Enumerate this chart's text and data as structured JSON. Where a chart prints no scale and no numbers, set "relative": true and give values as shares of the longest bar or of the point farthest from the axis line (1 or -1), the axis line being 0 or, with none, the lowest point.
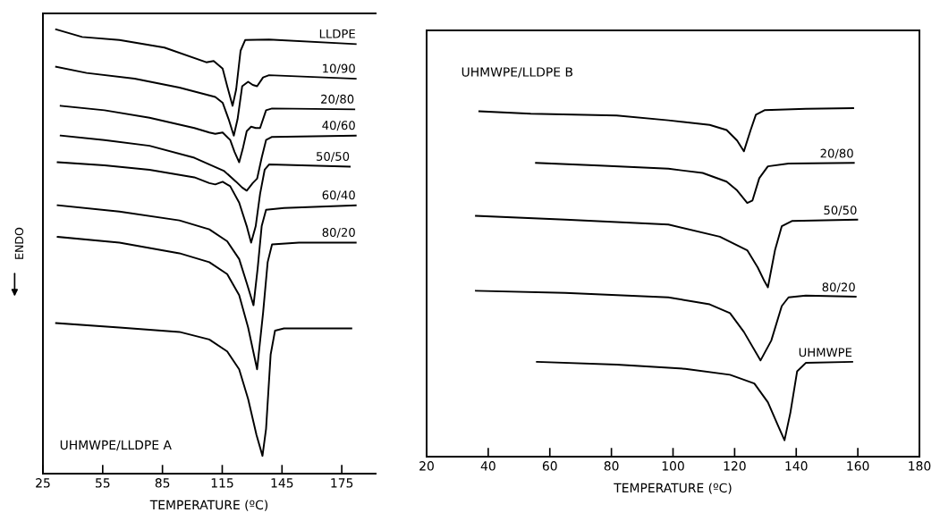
{
  "chart_data": [
    {
      "type": "line",
      "title": "UHMWPE/LLDPE A",
      "xlabel": "TEMPERATURE (ºC)",
      "ylabel": "ENDO",
      "relative": true,
      "tick_labels": "x",
      "xlim": [
        25,
        192
      ],
      "xticks": [
        25,
        55,
        85,
        115,
        145,
        175
      ],
      "series": [
        {
          "name": "LLDPE",
          "color": "#000000",
          "x": [
            31.6,
            44.7,
            63.4,
            86,
            107,
            110.7,
            115.2,
            117.5,
            120.2,
            122,
            124.2,
            126.5,
            138.5,
            182
          ],
          "values": [
            1.0,
            0.983,
            0.976,
            0.959,
            0.926,
            0.929,
            0.912,
            0.872,
            0.828,
            0.865,
            0.952,
            0.976,
            0.977,
            0.967
          ]
        },
        {
          "name": "10/90",
          "color": "#000000",
          "x": [
            31.6,
            46.9,
            71,
            93.5,
            111.5,
            115.2,
            118.2,
            120.8,
            122.7,
            125,
            128,
            130.3,
            132.5,
            135.5,
            138.5,
            182
          ],
          "values": [
            0.916,
            0.902,
            0.889,
            0.869,
            0.848,
            0.835,
            0.798,
            0.761,
            0.798,
            0.872,
            0.882,
            0.875,
            0.872,
            0.892,
            0.897,
            0.889
          ]
        },
        {
          "name": "20/80",
          "color": "#000000",
          "x": [
            33.9,
            55.9,
            78.5,
            101,
            108.5,
            111.5,
            115.2,
            119,
            121.2,
            123.5,
            125.3,
            127.3,
            129.5,
            131.8,
            134,
            137,
            140,
            181.3
          ],
          "values": [
            0.828,
            0.818,
            0.801,
            0.778,
            0.768,
            0.765,
            0.768,
            0.751,
            0.724,
            0.701,
            0.731,
            0.771,
            0.781,
            0.778,
            0.778,
            0.818,
            0.822,
            0.82
          ]
        },
        {
          "name": "40/60",
          "color": "#000000",
          "x": [
            33.9,
            55.9,
            78.5,
            101,
            116,
            122,
            125,
            127.3,
            130.3,
            132.5,
            134.8,
            137,
            140,
            182
          ],
          "values": [
            0.761,
            0.751,
            0.738,
            0.711,
            0.681,
            0.657,
            0.644,
            0.637,
            0.654,
            0.664,
            0.711,
            0.751,
            0.758,
            0.761
          ]
        },
        {
          "name": "50/50",
          "color": "#000000",
          "x": [
            32.4,
            55.9,
            78.5,
            101,
            108.5,
            111.5,
            115.2,
            119,
            123.5,
            127.3,
            129.5,
            131.8,
            134,
            136.3,
            138.5,
            179
          ],
          "values": [
            0.701,
            0.694,
            0.684,
            0.667,
            0.654,
            0.651,
            0.657,
            0.647,
            0.61,
            0.557,
            0.52,
            0.557,
            0.63,
            0.684,
            0.696,
            0.691
          ]
        },
        {
          "name": "60/40",
          "color": "#000000",
          "x": [
            32.4,
            63.4,
            93.5,
            108.5,
            117.5,
            123.5,
            127.3,
            130.7,
            132.8,
            134.8,
            137,
            146,
            182
          ],
          "values": [
            0.604,
            0.59,
            0.57,
            0.55,
            0.523,
            0.483,
            0.429,
            0.379,
            0.463,
            0.557,
            0.594,
            0.598,
            0.604
          ]
        },
        {
          "name": "80/20",
          "color": "#000000",
          "x": [
            32.4,
            63.4,
            93.5,
            108.5,
            117.5,
            123.5,
            128,
            132.5,
            135.5,
            137.8,
            140,
            153.5,
            182
          ],
          "values": [
            0.533,
            0.52,
            0.496,
            0.476,
            0.449,
            0.402,
            0.329,
            0.235,
            0.362,
            0.476,
            0.516,
            0.52,
            0.52
          ]
        },
        {
          "color": "#000000",
          "x": [
            31.6,
            63.4,
            93.5,
            108.5,
            117.5,
            123.5,
            128,
            132.2,
            135.2,
            137,
            139.3,
            141.5,
            146,
            179.8
          ],
          "values": [
            0.339,
            0.329,
            0.319,
            0.302,
            0.275,
            0.235,
            0.168,
            0.087,
            0.04,
            0.101,
            0.268,
            0.322,
            0.327,
            0.327
          ]
        }
      ]
    },
    {
      "type": "line",
      "title": "UHMWPE/LLDPE B",
      "xlabel": "TEMPERATURE (ºC)",
      "relative": true,
      "tick_labels": "x",
      "xlim": [
        20,
        180
      ],
      "xticks": [
        20,
        40,
        60,
        80,
        100,
        120,
        140,
        160,
        180
      ],
      "series": [
        {
          "color": "#000000",
          "x": [
            37.1,
            53.8,
            81.7,
            98.5,
            111.9,
            117.4,
            120.8,
            123,
            125.2,
            126.9,
            129.7,
            143.1,
            158.5
          ],
          "values": [
            0.991,
            0.984,
            0.979,
            0.965,
            0.952,
            0.937,
            0.907,
            0.876,
            0.937,
            0.981,
            0.994,
            0.998,
            1.0
          ]
        },
        {
          "name": "20/80",
          "color": "#000000",
          "x": [
            55.5,
            76.1,
            98.5,
            109.6,
            117.4,
            120.8,
            124.1,
            125.8,
            128,
            130.8,
            137.5,
            158.7
          ],
          "values": [
            0.843,
            0.835,
            0.826,
            0.814,
            0.789,
            0.764,
            0.728,
            0.735,
            0.799,
            0.833,
            0.841,
            0.843
          ]
        },
        {
          "name": "50/50",
          "color": "#000000",
          "x": [
            36,
            65,
            98.5,
            115.2,
            124.1,
            127.5,
            129.7,
            130.8,
            133.1,
            135.3,
            138.6,
            159.8
          ],
          "values": [
            0.691,
            0.68,
            0.666,
            0.631,
            0.592,
            0.543,
            0.503,
            0.486,
            0.592,
            0.661,
            0.676,
            0.68
          ]
        },
        {
          "name": "80/20",
          "color": "#000000",
          "x": [
            36,
            65,
            98.5,
            111.9,
            118.5,
            123,
            128.4,
            131.9,
            135.3,
            137.5,
            143.1,
            159.3
          ],
          "values": [
            0.476,
            0.47,
            0.457,
            0.437,
            0.412,
            0.358,
            0.276,
            0.333,
            0.432,
            0.457,
            0.462,
            0.459
          ]
        },
        {
          "name": "UHMWPE",
          "color": "#000000",
          "x": [
            55.8,
            81.7,
            104,
            118.5,
            126.4,
            130.8,
            134.2,
            136.2,
            138.1,
            140.3,
            143.1,
            158.2
          ],
          "values": [
            0.272,
            0.264,
            0.252,
            0.235,
            0.21,
            0.156,
            0.087,
            0.047,
            0.126,
            0.245,
            0.269,
            0.272
          ]
        }
      ]
    }
  ]
}
